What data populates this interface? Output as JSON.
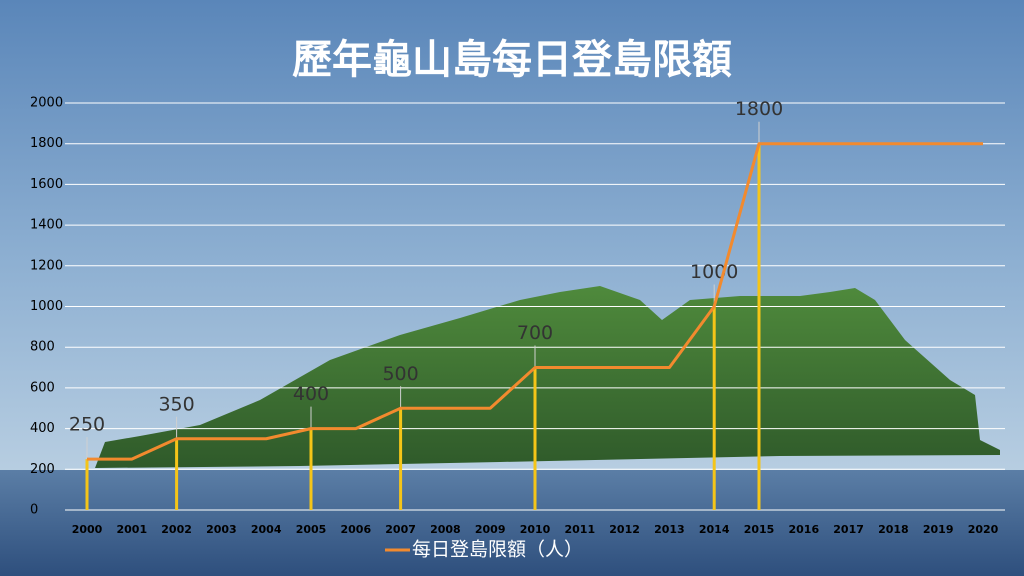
{
  "chart_data": {
    "type": "line",
    "title": "歷年龜山島每日登島限額",
    "categories": [
      "2000",
      "2001",
      "2002",
      "2003",
      "2004",
      "2005",
      "2006",
      "2007",
      "2008",
      "2009",
      "2010",
      "2011",
      "2012",
      "2013",
      "2014",
      "2015",
      "2016",
      "2017",
      "2018",
      "2019",
      "2020"
    ],
    "series": [
      {
        "name": "每日登島限額（人）",
        "color": "#f28a2e",
        "values": [
          250,
          250,
          350,
          350,
          350,
          400,
          400,
          500,
          500,
          500,
          700,
          700,
          700,
          700,
          1000,
          1800,
          1800,
          1800,
          1800,
          1800,
          1800
        ]
      }
    ],
    "drop_line_color": "#f5c518",
    "ylim": [
      0,
      2000
    ],
    "yticks": [
      0,
      200,
      400,
      600,
      800,
      1000,
      1200,
      1400,
      1600,
      1800,
      2000
    ],
    "grid": true
  }
}
